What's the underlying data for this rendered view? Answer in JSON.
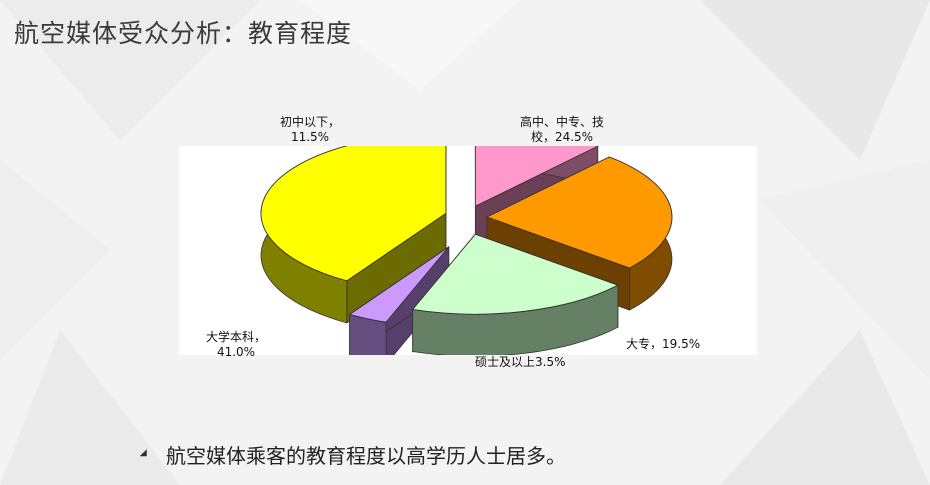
{
  "title": "航空媒体受众分析：教育程度",
  "chart_data": {
    "type": "pie",
    "style": "3d-exploded",
    "slices": [
      {
        "key": "junior",
        "label_line1": "初中以下，",
        "label_line2": "11.5%",
        "name": "初中以下",
        "value": 11.5,
        "color": "#ff99cc"
      },
      {
        "key": "highschool",
        "label_line1": "高中、中专、技",
        "label_line2": "校，24.5%",
        "name": "高中、中专、技校",
        "value": 24.5,
        "color": "#ff9900"
      },
      {
        "key": "college",
        "label_line1": "大专，19.5%",
        "label_line2": "",
        "name": "大专",
        "value": 19.5,
        "color": "#ccffcc"
      },
      {
        "key": "master",
        "label_line1": "硕士及以上3.5%",
        "label_line2": "",
        "name": "硕士及以上",
        "value": 3.5,
        "color": "#cc99ff"
      },
      {
        "key": "bachelor",
        "label_line1": "大学本科，",
        "label_line2": "41.0%",
        "name": "大学本科",
        "value": 41.0,
        "color": "#ffff00"
      }
    ]
  },
  "note": {
    "text": "航空媒体乘客的教育程度以高学历人士居多。"
  }
}
